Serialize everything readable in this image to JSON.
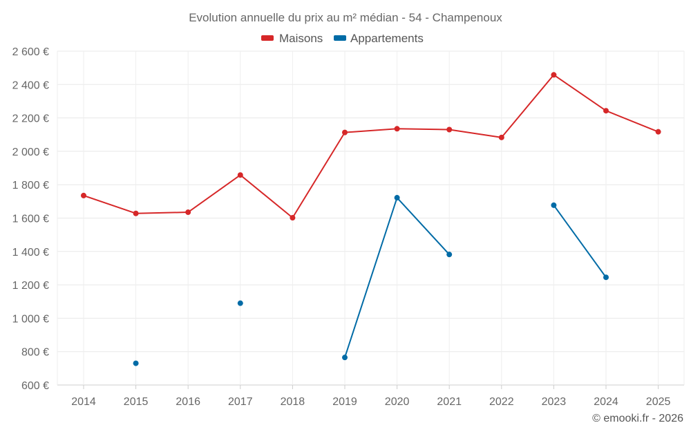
{
  "chart_data": {
    "type": "line",
    "title": "Evolution annuelle du prix au m² médian - 54 - Champenoux",
    "categories": [
      "2014",
      "2015",
      "2016",
      "2017",
      "2018",
      "2019",
      "2020",
      "2021",
      "2022",
      "2023",
      "2024",
      "2025"
    ],
    "ylim": [
      600,
      2600
    ],
    "yticks": [
      600,
      800,
      1000,
      1200,
      1400,
      1600,
      1800,
      2000,
      2200,
      2400,
      2600
    ],
    "ytick_labels": [
      "600 €",
      "800 €",
      "1 000 €",
      "1 200 €",
      "1 400 €",
      "1 600 €",
      "1 800 €",
      "2 000 €",
      "2 200 €",
      "2 400 €",
      "2 600 €"
    ],
    "grid": true,
    "legend_position": "top-center",
    "series": [
      {
        "name": "Maisons",
        "color": "#d62728",
        "values": [
          1735,
          1628,
          1635,
          1858,
          1602,
          2113,
          2135,
          2130,
          2083,
          2458,
          2243,
          2117
        ]
      },
      {
        "name": "Appartements",
        "color": "#006ba6",
        "values": [
          null,
          730,
          null,
          1090,
          null,
          765,
          1722,
          1382,
          null,
          1677,
          1245,
          null
        ]
      }
    ]
  },
  "credit": "© emooki.fr - 2026"
}
